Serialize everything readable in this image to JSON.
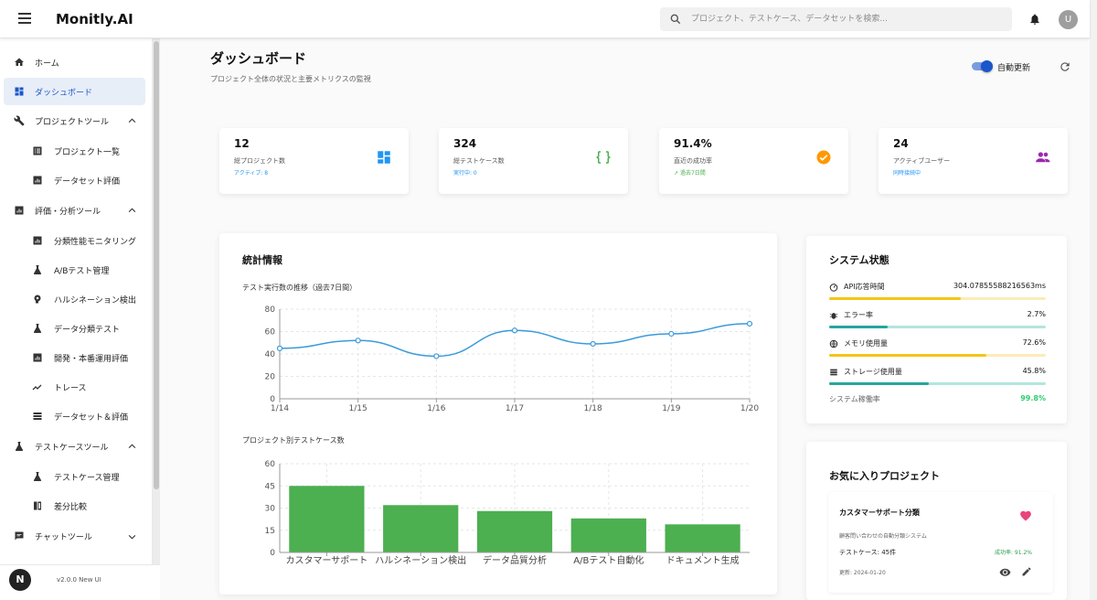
{
  "app": {
    "title": "Monitly.AI"
  },
  "search": {
    "placeholder": "プロジェクト、テストケース、データセットを検索..."
  },
  "user": {
    "avatar_letter": "U"
  },
  "sidebar": {
    "items": [
      {
        "label": "ホーム",
        "icon": "home-icon"
      },
      {
        "label": "ダッシュボード",
        "icon": "dashboard-icon",
        "active": true
      },
      {
        "label": "プロジェクトツール",
        "icon": "wrench-icon",
        "expanded": true
      },
      {
        "label": "プロジェクト一覧",
        "icon": "list-icon"
      },
      {
        "label": "データセット評価",
        "icon": "bar-chart-icon"
      },
      {
        "label": "評価・分析ツール",
        "icon": "analytics-icon",
        "expanded": true
      },
      {
        "label": "分類性能モニタリング",
        "icon": "bar-chart-icon"
      },
      {
        "label": "A/Bテスト管理",
        "icon": "flask-icon"
      },
      {
        "label": "ハルシネーション検出",
        "icon": "psychology-icon"
      },
      {
        "label": "データ分類テスト",
        "icon": "flask-icon"
      },
      {
        "label": "開発・本番運用評価",
        "icon": "bar-chart-icon"
      },
      {
        "label": "トレース",
        "icon": "trend-icon"
      },
      {
        "label": "データセット＆評価",
        "icon": "storage-icon"
      },
      {
        "label": "テストケースツール",
        "icon": "flask-icon",
        "expanded": true
      },
      {
        "label": "テストケース管理",
        "icon": "flask-icon"
      },
      {
        "label": "差分比較",
        "icon": "compare-icon"
      },
      {
        "label": "チャットツール",
        "icon": "chat-icon",
        "expanded": false
      }
    ],
    "version": "v2.0.0 New UI",
    "logo_letter": "N"
  },
  "header": {
    "title": "ダッシュボード",
    "subtitle": "プロジェクト全体の状況と主要メトリクスの監視",
    "auto_refresh_label": "自動更新",
    "auto_refresh_on": true
  },
  "stats": [
    {
      "value": "12",
      "label": "総プロジェクト数",
      "sub": "アクティブ: 8",
      "icon": "dashboard-icon",
      "color": "#2196f3"
    },
    {
      "value": "324",
      "label": "総テストケース数",
      "sub": "実行中: 0",
      "icon": "code-braces-icon",
      "color": "#4caf50"
    },
    {
      "value": "91.4%",
      "label": "直近の成功率",
      "sub": "過去7日間",
      "icon": "check-circle-icon",
      "color": "#ff9800"
    },
    {
      "value": "24",
      "label": "アクティブユーザー",
      "sub": "同時接続中",
      "icon": "people-icon",
      "color": "#9c27b0"
    }
  ],
  "stats_panel": {
    "title": "統計情報",
    "line_chart_title": "テスト実行数の推移（過去7日間）",
    "bar_chart_title": "プロジェクト別テストケース数"
  },
  "chart_data": [
    {
      "type": "line",
      "title": "テスト実行数の推移（過去7日間）",
      "x": [
        "1/14",
        "1/15",
        "1/16",
        "1/17",
        "1/18",
        "1/19",
        "1/20"
      ],
      "values": [
        45,
        52,
        38,
        61,
        49,
        58,
        67
      ],
      "ylim": [
        0,
        80
      ],
      "yticks": [
        0,
        20,
        40,
        60,
        80
      ],
      "grid": true,
      "color": "#3b9bd9"
    },
    {
      "type": "bar",
      "title": "プロジェクト別テストケース数",
      "categories": [
        "カスタマーサポート",
        "ハルシネーション検出",
        "データ品質分析",
        "A/Bテスト自動化",
        "ドキュメント生成"
      ],
      "values": [
        45,
        32,
        28,
        23,
        19
      ],
      "ylim": [
        0,
        60
      ],
      "yticks": [
        0,
        15,
        30,
        45,
        60
      ],
      "grid": true,
      "color": "#4caf50"
    }
  ],
  "system": {
    "title": "システム状態",
    "metrics": [
      {
        "label": "API応答時間",
        "value": "304.07855588216563ms",
        "percent": 60.8,
        "icon": "speed-icon",
        "color": "#f5c518",
        "track": "#fbecb8"
      },
      {
        "label": "エラー率",
        "value": "2.7%",
        "percent": 27,
        "icon": "bug-icon",
        "color": "#26a69a",
        "track": "#b2e5df"
      },
      {
        "label": "メモリ使用量",
        "value": "72.6%",
        "percent": 72.6,
        "icon": "memory-icon",
        "color": "#f5c518",
        "track": "#fbecb8"
      },
      {
        "label": "ストレージ使用量",
        "value": "45.8%",
        "percent": 45.8,
        "icon": "storage-icon",
        "color": "#26a69a",
        "track": "#b2e5df"
      }
    ],
    "uptime_label": "システム稼働率",
    "uptime_value": "99.8%"
  },
  "favorites": {
    "title": "お気に入りプロジェクト",
    "items": [
      {
        "name": "カスタマーサポート分類",
        "description": "顧客問い合わせの自動分類システム",
        "test_cases": "テストケース: 45件",
        "success_rate": "成功率: 91.2%",
        "updated": "更新: 2024-01-20"
      }
    ]
  }
}
